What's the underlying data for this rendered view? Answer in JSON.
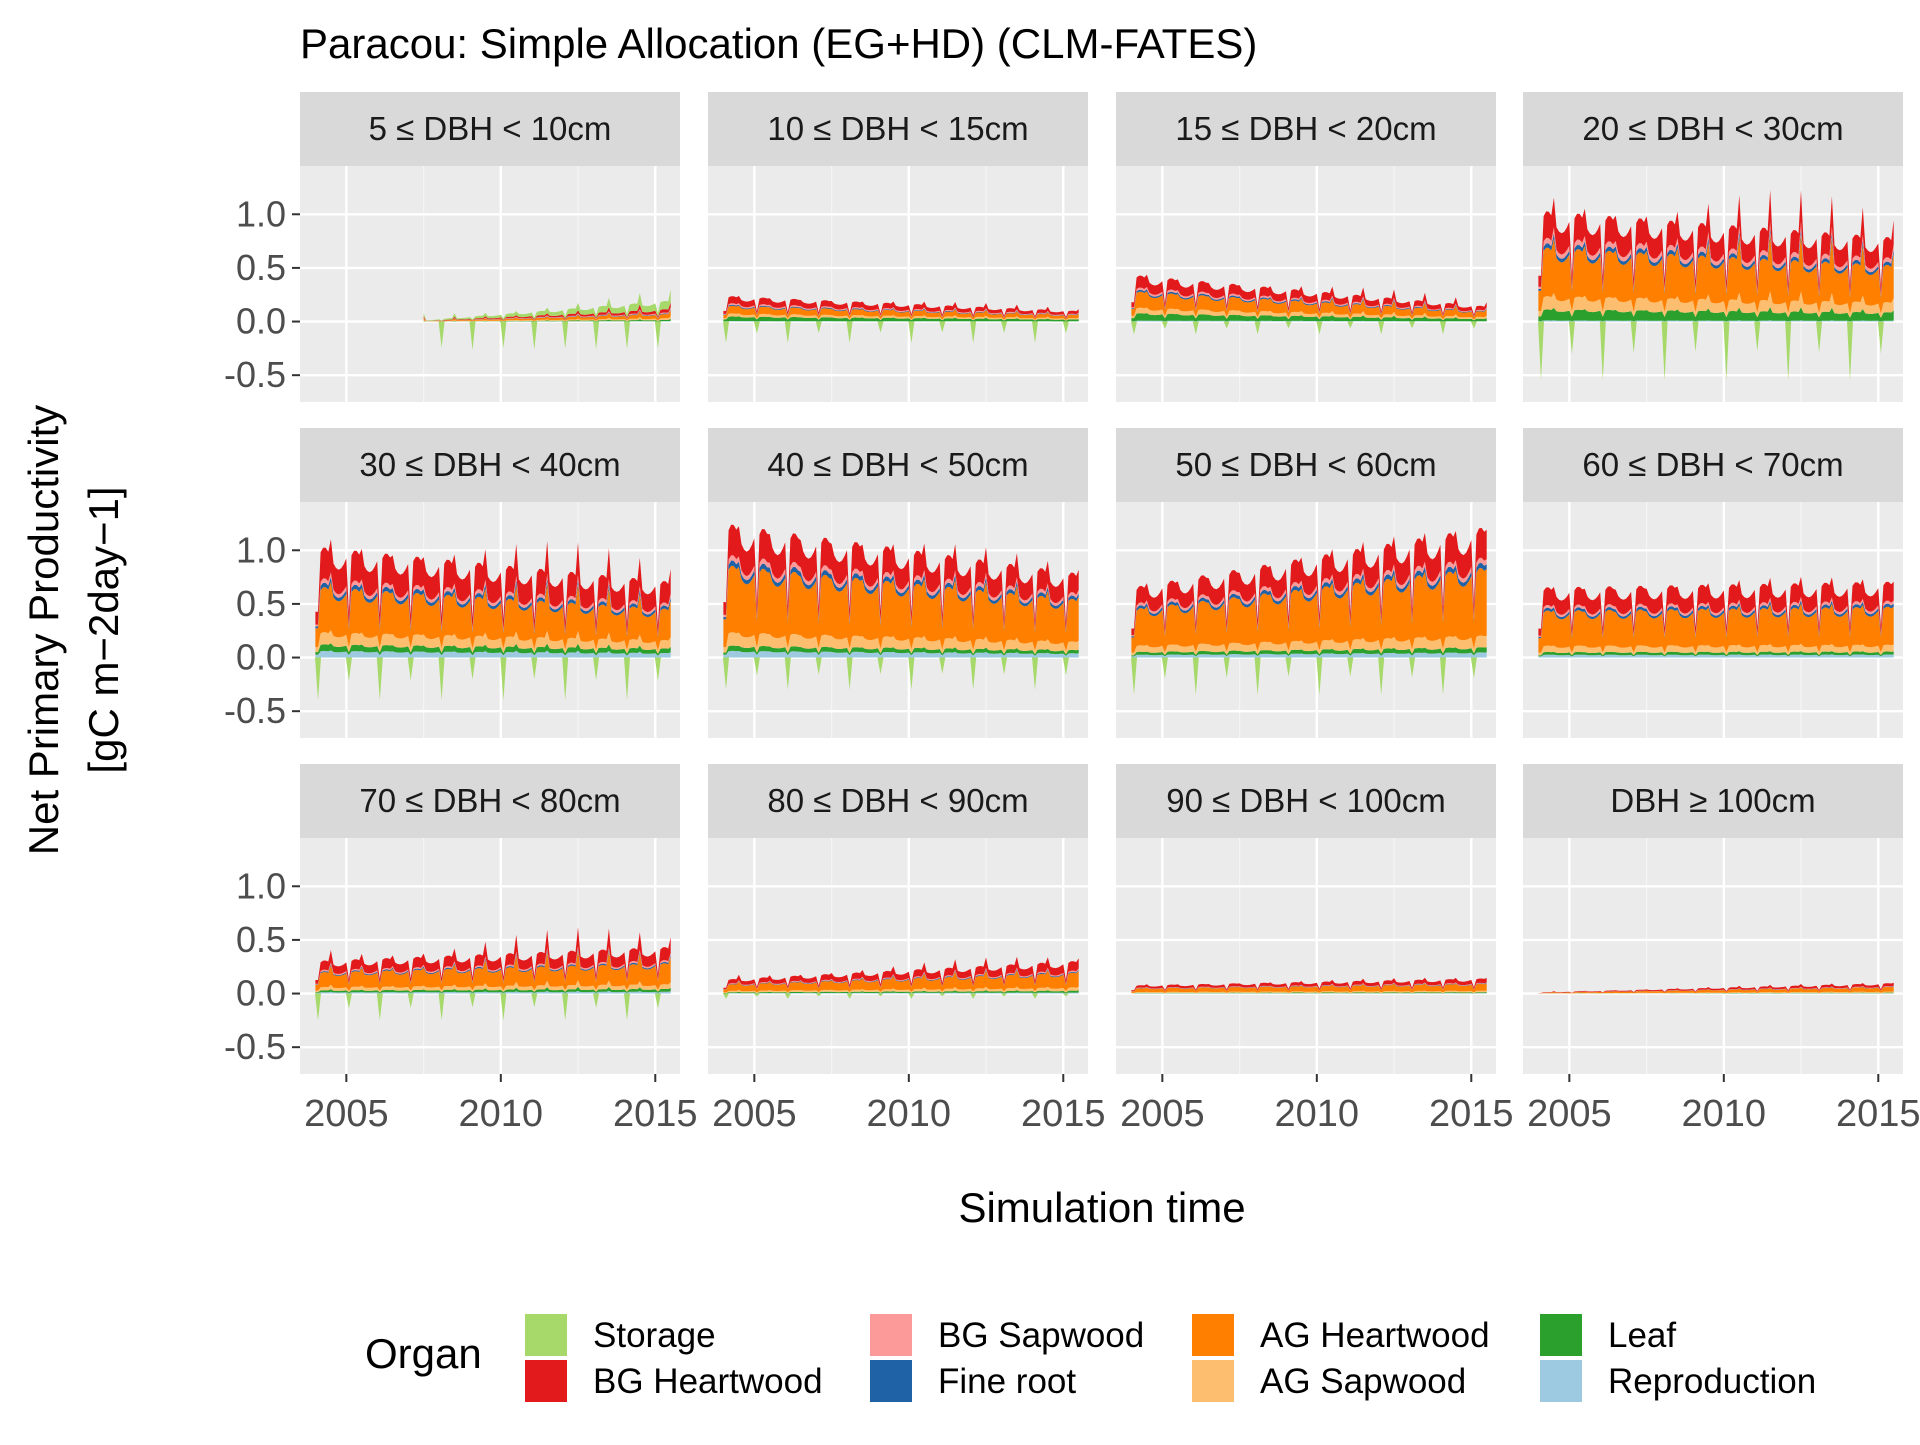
{
  "chart_data": {
    "type": "area",
    "stacked": true,
    "faceted": true,
    "title": "Paracou: Simple Allocation (EG+HD) (CLM-FATES)",
    "xlabel": "Simulation time",
    "ylabel_line1": "Net Primary Productivity",
    "ylabel_line2": "[gC m−2day−1]",
    "x_ticks": [
      "2005",
      "2010",
      "2015"
    ],
    "x_tick_values": [
      2005,
      2010,
      2015
    ],
    "xlim": [
      2003.5,
      2015.8
    ],
    "y_ticks": [
      "1.0",
      "0.5",
      "0.0",
      "-0.5"
    ],
    "y_tick_values": [
      1.0,
      0.5,
      0.0,
      -0.5
    ],
    "ylim": [
      -0.75,
      1.45
    ],
    "grid": true,
    "legend": {
      "title": "Organ",
      "position": "bottom",
      "entries": [
        {
          "name": "Storage",
          "color": "#a6d96a"
        },
        {
          "name": "BG Heartwood",
          "color": "#e31a1c"
        },
        {
          "name": "BG Sapwood",
          "color": "#fb9a99"
        },
        {
          "name": "Fine root",
          "color": "#1f62a6"
        },
        {
          "name": "AG Heartwood",
          "color": "#ff7f00"
        },
        {
          "name": "AG Sapwood",
          "color": "#fdbf6f"
        },
        {
          "name": "Leaf",
          "color": "#2ca02c"
        },
        {
          "name": "Reproduction",
          "color": "#9ecae1"
        }
      ]
    },
    "stack_order_bottom_to_top": [
      "Reproduction",
      "Leaf",
      "AG Sapwood",
      "AG Heartwood",
      "Fine root",
      "BG Sapwood",
      "BG Heartwood",
      "Storage"
    ],
    "panels": [
      {
        "label": "5 ≤ DBH < 10cm",
        "start": 2007.5,
        "total_early": 0.01,
        "total_late": 0.18,
        "spike": 0.12,
        "neg_spike": 0.3,
        "frac": {
          "Reproduction": 0.02,
          "Leaf": 0.06,
          "AG Sapwood": 0.08,
          "AG Heartwood": 0.2,
          "Fine root": 0.03,
          "BG Sapwood": 0.05,
          "BG Heartwood": 0.16,
          "Storage": 0.4
        }
      },
      {
        "label": "10 ≤ DBH < 15cm",
        "start": 2004.0,
        "total_early": 0.22,
        "total_late": 0.09,
        "spike": 0.05,
        "neg_spike": 0.2,
        "frac": {
          "Reproduction": 0.02,
          "Leaf": 0.18,
          "AG Sapwood": 0.12,
          "AG Heartwood": 0.3,
          "Fine root": 0.04,
          "BG Sapwood": 0.06,
          "BG Heartwood": 0.28,
          "Storage": 0.0
        }
      },
      {
        "label": "15 ≤ DBH < 20cm",
        "start": 2004.0,
        "total_early": 0.4,
        "total_late": 0.13,
        "spike": 0.1,
        "neg_spike": 0.12,
        "frac": {
          "Reproduction": 0.02,
          "Leaf": 0.16,
          "AG Sapwood": 0.12,
          "AG Heartwood": 0.35,
          "Fine root": 0.04,
          "BG Sapwood": 0.05,
          "BG Heartwood": 0.26,
          "Storage": 0.0
        }
      },
      {
        "label": "20 ≤ DBH < 30cm",
        "start": 2004.0,
        "total_early": 0.95,
        "total_late": 0.72,
        "spike": 0.45,
        "neg_spike": 0.55,
        "frac": {
          "Reproduction": 0.01,
          "Leaf": 0.1,
          "AG Sapwood": 0.12,
          "AG Heartwood": 0.44,
          "Fine root": 0.04,
          "BG Sapwood": 0.05,
          "BG Heartwood": 0.24,
          "Storage": 0.0
        }
      },
      {
        "label": "30 ≤ DBH < 40cm",
        "start": 2004.0,
        "total_early": 0.95,
        "total_late": 0.65,
        "spike": 0.35,
        "neg_spike": 0.4,
        "frac": {
          "Reproduction": 0.06,
          "Leaf": 0.06,
          "AG Sapwood": 0.11,
          "AG Heartwood": 0.41,
          "Fine root": 0.04,
          "BG Sapwood": 0.04,
          "BG Heartwood": 0.28,
          "Storage": 0.0
        }
      },
      {
        "label": "40 ≤ DBH < 50cm",
        "start": 2004.0,
        "total_early": 1.15,
        "total_late": 0.72,
        "spike": 0.2,
        "neg_spike": 0.3,
        "frac": {
          "Reproduction": 0.05,
          "Leaf": 0.04,
          "AG Sapwood": 0.1,
          "AG Heartwood": 0.5,
          "Fine root": 0.04,
          "BG Sapwood": 0.04,
          "BG Heartwood": 0.23,
          "Storage": 0.0
        }
      },
      {
        "label": "50 ≤ DBH < 60cm",
        "start": 2004.0,
        "total_early": 0.6,
        "total_late": 1.12,
        "spike": 0.15,
        "neg_spike": 0.35,
        "frac": {
          "Reproduction": 0.04,
          "Leaf": 0.04,
          "AG Sapwood": 0.09,
          "AG Heartwood": 0.52,
          "Fine root": 0.04,
          "BG Sapwood": 0.04,
          "BG Heartwood": 0.23,
          "Storage": 0.0
        }
      },
      {
        "label": "60 ≤ DBH < 70cm",
        "start": 2004.0,
        "total_early": 0.6,
        "total_late": 0.65,
        "spike": 0.12,
        "neg_spike": 0.0,
        "frac": {
          "Reproduction": 0.04,
          "Leaf": 0.04,
          "AG Sapwood": 0.09,
          "AG Heartwood": 0.5,
          "Fine root": 0.04,
          "BG Sapwood": 0.04,
          "BG Heartwood": 0.25,
          "Storage": 0.0
        }
      },
      {
        "label": "70 ≤ DBH < 80cm",
        "start": 2004.0,
        "total_early": 0.28,
        "total_late": 0.4,
        "spike": 0.25,
        "neg_spike": 0.25,
        "frac": {
          "Reproduction": 0.04,
          "Leaf": 0.06,
          "AG Sapwood": 0.1,
          "AG Heartwood": 0.45,
          "Fine root": 0.03,
          "BG Sapwood": 0.04,
          "BG Heartwood": 0.28,
          "Storage": 0.0
        }
      },
      {
        "label": "80 ≤ DBH < 90cm",
        "start": 2004.0,
        "total_early": 0.12,
        "total_late": 0.28,
        "spike": 0.1,
        "neg_spike": 0.05,
        "frac": {
          "Reproduction": 0.03,
          "Leaf": 0.06,
          "AG Sapwood": 0.1,
          "AG Heartwood": 0.45,
          "Fine root": 0.03,
          "BG Sapwood": 0.04,
          "BG Heartwood": 0.29,
          "Storage": 0.0
        }
      },
      {
        "label": "90 ≤ DBH < 100cm",
        "start": 2004.0,
        "total_early": 0.07,
        "total_late": 0.13,
        "spike": 0.03,
        "neg_spike": 0.0,
        "frac": {
          "Reproduction": 0.03,
          "Leaf": 0.06,
          "AG Sapwood": 0.1,
          "AG Heartwood": 0.45,
          "Fine root": 0.03,
          "BG Sapwood": 0.04,
          "BG Heartwood": 0.29,
          "Storage": 0.0
        }
      },
      {
        "label": "DBH ≥ 100cm",
        "start": 2004.0,
        "total_early": 0.01,
        "total_late": 0.09,
        "spike": 0.02,
        "neg_spike": 0.0,
        "frac": {
          "Reproduction": 0.03,
          "Leaf": 0.06,
          "AG Sapwood": 0.1,
          "AG Heartwood": 0.45,
          "Fine root": 0.03,
          "BG Sapwood": 0.04,
          "BG Heartwood": 0.29,
          "Storage": 0.0
        }
      }
    ]
  }
}
